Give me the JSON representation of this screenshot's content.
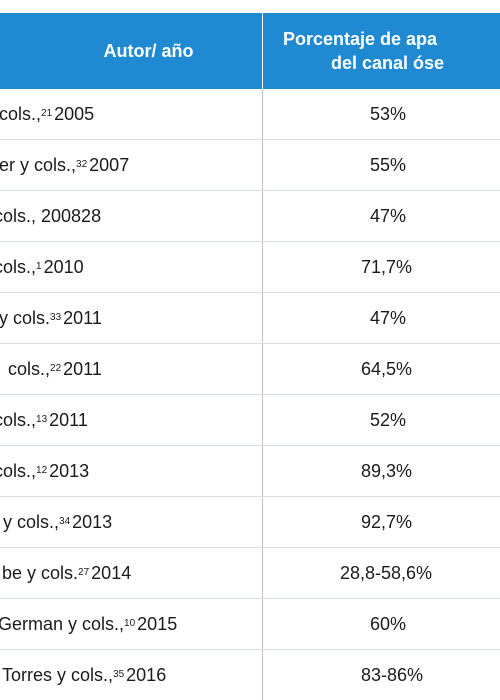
{
  "table": {
    "header": {
      "author": "Autor/ año",
      "pct_line1": "Porcentaje de apa",
      "pct_line2": "del canal óse"
    },
    "rows": [
      {
        "pre": "cols.,",
        "sup": "21",
        "post": " 2005",
        "pct": "53%"
      },
      {
        "pre": "er y cols.,",
        "sup": "32",
        "post": " 2007",
        "pct": "55%"
      },
      {
        "pre": "cols., 200828",
        "sup": "",
        "post": "",
        "pct": "47%"
      },
      {
        "pre": "cols.,",
        "sup": "1",
        "post": " 2010",
        "pct": "71,7%"
      },
      {
        "pre": "y cols.",
        "sup": "33",
        "post": " 2011",
        "pct": "47%"
      },
      {
        "pre": "cols.,",
        "sup": "22",
        "post": "  2011",
        "pct": "64,5%"
      },
      {
        "pre": "cols.,",
        "sup": "13",
        "post": " 2011",
        "pct": "52%"
      },
      {
        "pre": "cols.,",
        "sup": "12",
        "post": " 2013",
        "pct": "89,3%"
      },
      {
        "pre": "y cols.,",
        "sup": "34",
        "post": " 2013",
        "pct": "92,7%"
      },
      {
        "pre": "be y cols.",
        "sup": "27",
        "post": " 2014",
        "pct": "28,8-58,6%"
      },
      {
        "pre": "German y cols.,",
        "sup": "10",
        "post": " 2015",
        "pct": "60%"
      },
      {
        "pre": "Torres y cols.,",
        "sup": "35",
        "post": " 2016",
        "pct": "83-86%"
      }
    ]
  }
}
